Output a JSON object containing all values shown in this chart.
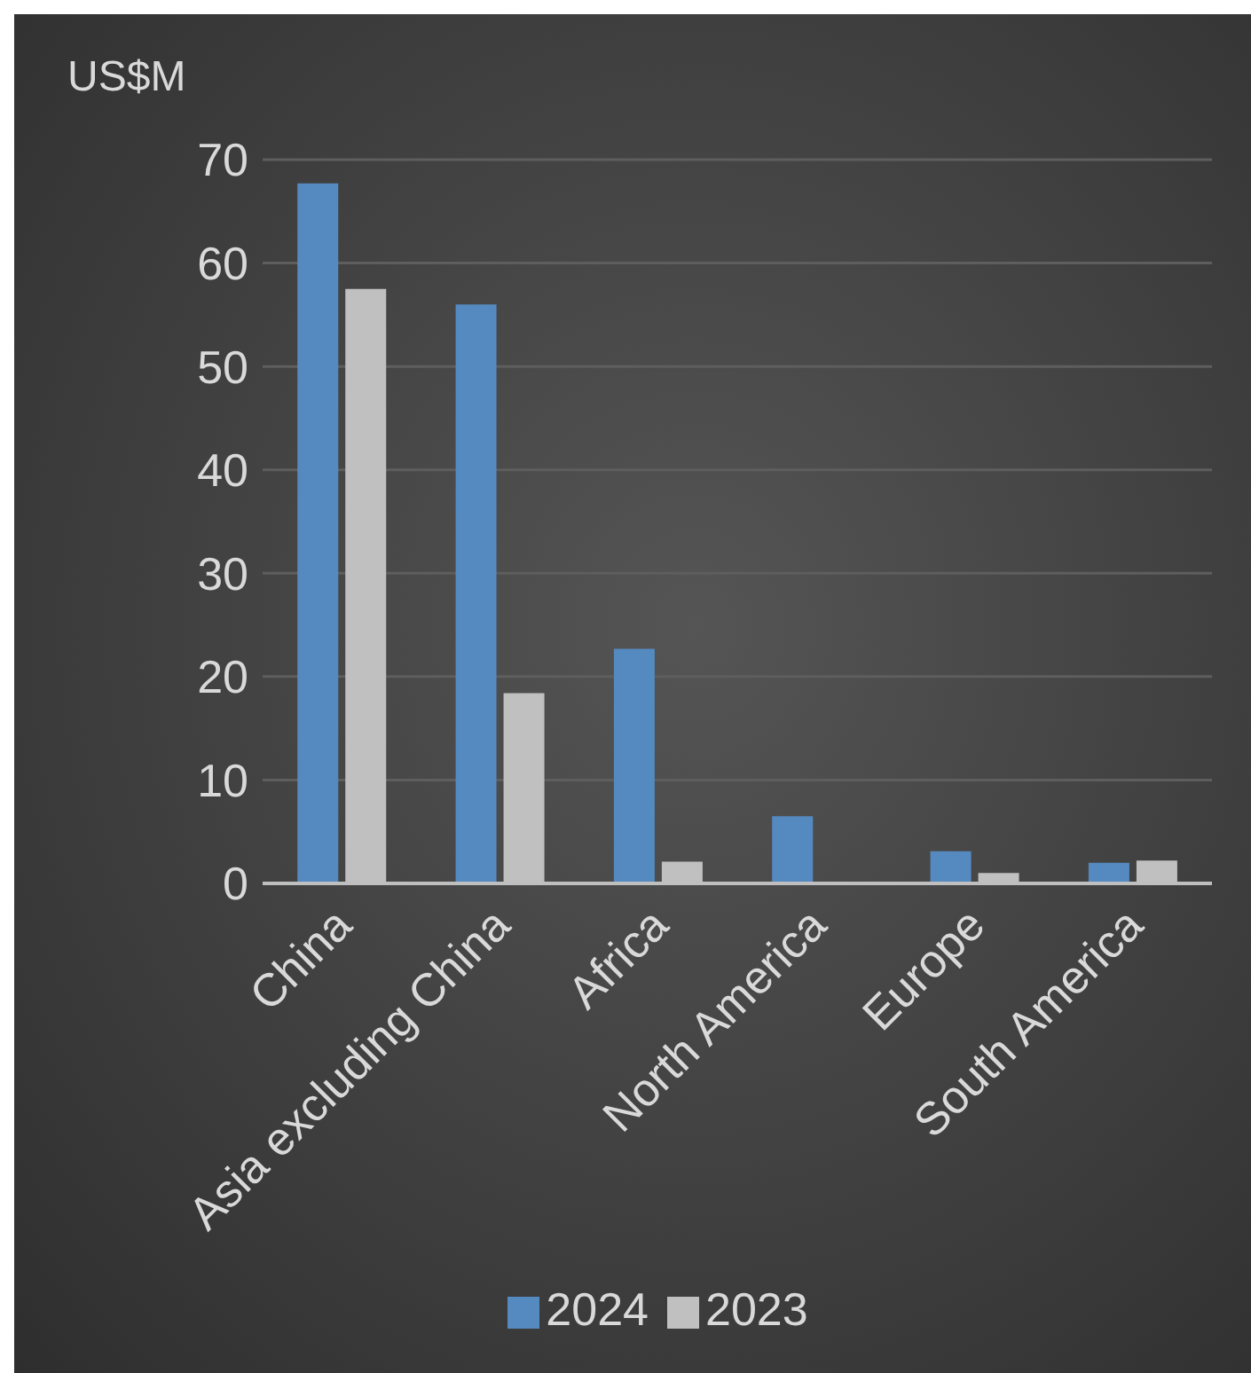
{
  "chart_data": {
    "type": "bar",
    "ylabel": "US$M",
    "categories": [
      "China",
      "Asia excluding China",
      "Africa",
      "North America",
      "Europe",
      "South America"
    ],
    "series": [
      {
        "name": "2024",
        "color": "#558ac0",
        "values": [
          67.7,
          56,
          22.7,
          6.5,
          3.1,
          2.0
        ]
      },
      {
        "name": "2023",
        "color": "#c0c0c0",
        "values": [
          57.5,
          18.4,
          2.1,
          0,
          1.0,
          2.2
        ]
      }
    ],
    "ylim": [
      0,
      70
    ],
    "yticks": [
      0,
      10,
      20,
      30,
      40,
      50,
      60,
      70
    ],
    "grid": "y",
    "legend": "bottom"
  }
}
